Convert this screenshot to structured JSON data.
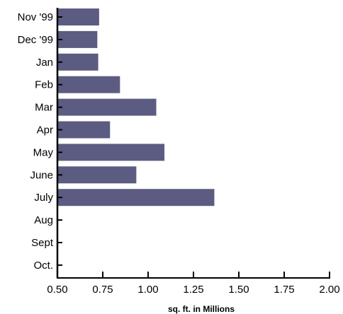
{
  "chart_data": {
    "type": "bar",
    "orientation": "horizontal",
    "categories": [
      "Nov '99",
      "Dec '99",
      "Jan",
      "Feb",
      "Mar",
      "Apr",
      "May",
      "June",
      "July",
      "Aug",
      "Sept",
      "Oct."
    ],
    "values": [
      0.73,
      0.72,
      0.725,
      0.845,
      1.045,
      0.79,
      1.09,
      0.935,
      1.365,
      null,
      null,
      null
    ],
    "xlabel": "sq. ft. in Millions",
    "ylabel": "",
    "xlim": [
      0.5,
      2.0
    ],
    "xticks": [
      0.5,
      0.75,
      1.0,
      1.25,
      1.5,
      1.75,
      2.0
    ],
    "xtick_labels": [
      "0.50",
      "0.75",
      "1.00",
      "1.25",
      "1.50",
      "1.75",
      "2.00"
    ],
    "grid": false,
    "legend": "none",
    "bar_color": "#5c5c82",
    "axis_color": "#000000"
  }
}
